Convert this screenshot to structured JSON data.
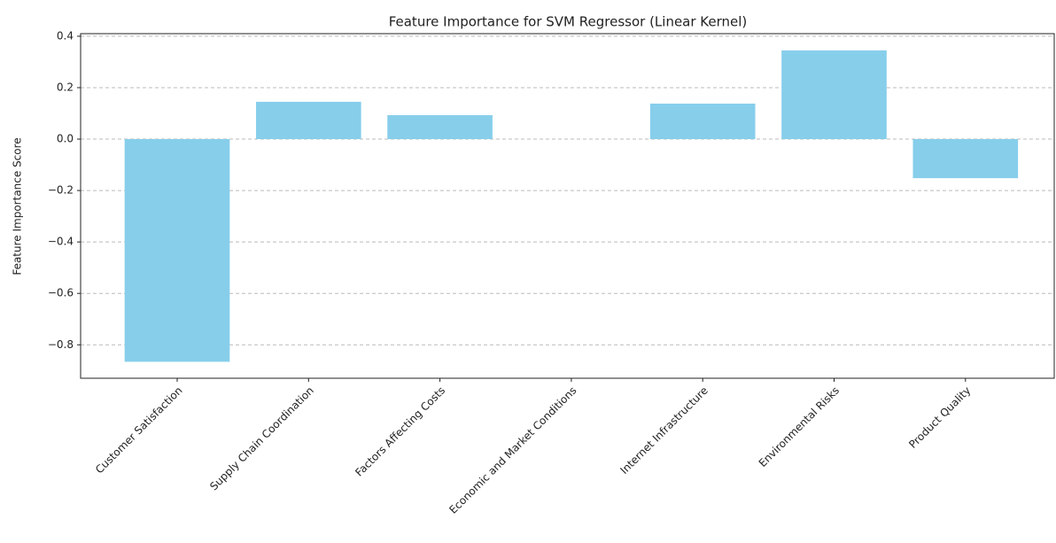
{
  "chart_data": {
    "type": "bar",
    "title": "Feature Importance for SVM Regressor (Linear Kernel)",
    "y_label": "Feature Importance Score",
    "categories": [
      "Customer Satisfaction",
      "Supply Chain Coordination",
      "Factors Affecting Costs",
      "Economic and Market Conditions",
      "Internet Infrastructure",
      "Environmental Risks",
      "Product Quality"
    ],
    "values": [
      -0.866,
      0.145,
      0.093,
      0.0,
      0.138,
      0.345,
      -0.152
    ],
    "color": "#87ceeb",
    "ylim": [
      -0.93,
      0.41
    ],
    "yticks": [
      {
        "value": -0.8,
        "label": "−0.8"
      },
      {
        "value": -0.6,
        "label": "−0.6"
      },
      {
        "value": -0.4,
        "label": "−0.4"
      },
      {
        "value": -0.2,
        "label": "−0.2"
      },
      {
        "value": 0.0,
        "label": "0.0"
      },
      0.2,
      0.4
    ],
    "grid": true
  }
}
